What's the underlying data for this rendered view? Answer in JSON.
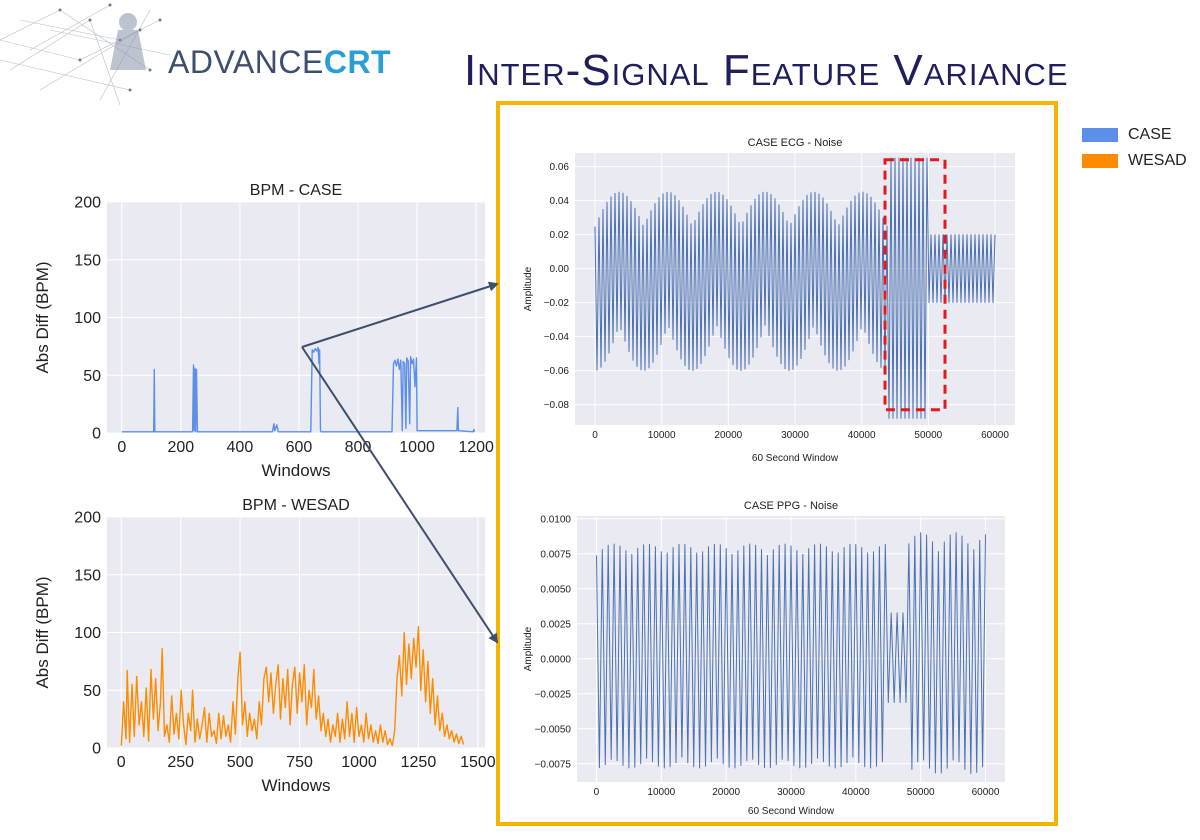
{
  "header": {
    "logo_text_1": "ADVANCE",
    "logo_text_2": "CRT",
    "title": "Inter-Signal Feature Variance"
  },
  "legend": {
    "items": [
      {
        "label": "CASE",
        "color": "#5b8fe8"
      },
      {
        "label": "WESAD",
        "color": "#ff8c00"
      }
    ]
  },
  "chart_data": [
    {
      "id": "bpm-case",
      "type": "line",
      "title": "BPM - CASE",
      "xlabel": "Windows",
      "ylabel": "Abs Diff (BPM)",
      "xlim": [
        -50,
        1230
      ],
      "ylim": [
        0,
        200
      ],
      "xticks": [
        0,
        200,
        400,
        600,
        800,
        1000,
        1200
      ],
      "yticks": [
        0,
        50,
        100,
        150,
        200
      ],
      "color": "#5b8fe8",
      "grid": true,
      "points": [
        [
          0,
          1
        ],
        [
          108,
          1
        ],
        [
          110,
          55
        ],
        [
          112,
          1
        ],
        [
          240,
          1
        ],
        [
          243,
          59
        ],
        [
          245,
          2
        ],
        [
          248,
          56
        ],
        [
          250,
          1
        ],
        [
          253,
          55
        ],
        [
          256,
          1
        ],
        [
          510,
          1
        ],
        [
          515,
          8
        ],
        [
          518,
          2
        ],
        [
          525,
          7
        ],
        [
          530,
          1
        ],
        [
          640,
          1
        ],
        [
          645,
          72
        ],
        [
          650,
          70
        ],
        [
          655,
          73
        ],
        [
          660,
          71
        ],
        [
          665,
          74
        ],
        [
          668,
          60
        ],
        [
          670,
          72
        ],
        [
          673,
          2
        ],
        [
          675,
          1
        ],
        [
          915,
          1
        ],
        [
          920,
          60
        ],
        [
          925,
          63
        ],
        [
          930,
          58
        ],
        [
          935,
          64
        ],
        [
          940,
          55
        ],
        [
          945,
          63
        ],
        [
          950,
          2
        ],
        [
          953,
          62
        ],
        [
          958,
          60
        ],
        [
          962,
          4
        ],
        [
          965,
          65
        ],
        [
          970,
          62
        ],
        [
          975,
          8
        ],
        [
          978,
          66
        ],
        [
          983,
          60
        ],
        [
          988,
          64
        ],
        [
          993,
          40
        ],
        [
          998,
          65
        ],
        [
          1000,
          2
        ],
        [
          1135,
          2
        ],
        [
          1138,
          22
        ],
        [
          1140,
          2
        ],
        [
          1190,
          1
        ],
        [
          1192,
          3
        ],
        [
          1195,
          1
        ]
      ]
    },
    {
      "id": "bpm-wesad",
      "type": "line",
      "title": "BPM - WESAD",
      "xlabel": "Windows",
      "ylabel": "Abs Diff (BPM)",
      "xlim": [
        -60,
        1530
      ],
      "ylim": [
        0,
        200
      ],
      "xticks": [
        0,
        250,
        500,
        750,
        1000,
        1250,
        1500
      ],
      "yticks": [
        0,
        50,
        100,
        150,
        200
      ],
      "color": "#ff8c00",
      "grid": true,
      "points": [
        [
          0,
          2
        ],
        [
          10,
          40
        ],
        [
          20,
          8
        ],
        [
          25,
          67
        ],
        [
          35,
          5
        ],
        [
          45,
          55
        ],
        [
          55,
          10
        ],
        [
          65,
          62
        ],
        [
          75,
          20
        ],
        [
          85,
          40
        ],
        [
          95,
          10
        ],
        [
          105,
          52
        ],
        [
          115,
          6
        ],
        [
          125,
          68
        ],
        [
          135,
          25
        ],
        [
          145,
          60
        ],
        [
          155,
          15
        ],
        [
          165,
          40
        ],
        [
          172,
          86
        ],
        [
          182,
          10
        ],
        [
          192,
          20
        ],
        [
          202,
          5
        ],
        [
          212,
          45
        ],
        [
          222,
          12
        ],
        [
          232,
          30
        ],
        [
          242,
          8
        ],
        [
          252,
          50
        ],
        [
          262,
          20
        ],
        [
          272,
          3
        ],
        [
          282,
          30
        ],
        [
          292,
          15
        ],
        [
          300,
          50
        ],
        [
          310,
          5
        ],
        [
          320,
          25
        ],
        [
          330,
          8
        ],
        [
          340,
          20
        ],
        [
          350,
          35
        ],
        [
          360,
          5
        ],
        [
          370,
          30
        ],
        [
          380,
          10
        ],
        [
          390,
          15
        ],
        [
          400,
          4
        ],
        [
          410,
          30
        ],
        [
          420,
          8
        ],
        [
          430,
          28
        ],
        [
          440,
          10
        ],
        [
          450,
          20
        ],
        [
          460,
          5
        ],
        [
          470,
          40
        ],
        [
          480,
          12
        ],
        [
          490,
          60
        ],
        [
          500,
          83
        ],
        [
          510,
          20
        ],
        [
          520,
          40
        ],
        [
          530,
          10
        ],
        [
          540,
          30
        ],
        [
          550,
          15
        ],
        [
          560,
          25
        ],
        [
          570,
          8
        ],
        [
          580,
          40
        ],
        [
          590,
          20
        ],
        [
          600,
          60
        ],
        [
          610,
          70
        ],
        [
          620,
          40
        ],
        [
          630,
          65
        ],
        [
          640,
          30
        ],
        [
          650,
          55
        ],
        [
          660,
          72
        ],
        [
          670,
          25
        ],
        [
          680,
          60
        ],
        [
          690,
          35
        ],
        [
          700,
          68
        ],
        [
          710,
          20
        ],
        [
          720,
          55
        ],
        [
          730,
          70
        ],
        [
          740,
          30
        ],
        [
          750,
          65
        ],
        [
          760,
          40
        ],
        [
          770,
          72
        ],
        [
          780,
          20
        ],
        [
          790,
          50
        ],
        [
          800,
          35
        ],
        [
          810,
          68
        ],
        [
          820,
          25
        ],
        [
          830,
          45
        ],
        [
          840,
          15
        ],
        [
          850,
          30
        ],
        [
          860,
          10
        ],
        [
          870,
          25
        ],
        [
          880,
          5
        ],
        [
          890,
          20
        ],
        [
          900,
          10
        ],
        [
          910,
          30
        ],
        [
          920,
          5
        ],
        [
          930,
          25
        ],
        [
          940,
          8
        ],
        [
          950,
          40
        ],
        [
          960,
          10
        ],
        [
          970,
          30
        ],
        [
          980,
          5
        ],
        [
          990,
          35
        ],
        [
          1000,
          10
        ],
        [
          1010,
          20
        ],
        [
          1020,
          5
        ],
        [
          1030,
          30
        ],
        [
          1040,
          8
        ],
        [
          1050,
          20
        ],
        [
          1060,
          5
        ],
        [
          1070,
          15
        ],
        [
          1080,
          4
        ],
        [
          1090,
          20
        ],
        [
          1100,
          5
        ],
        [
          1110,
          15
        ],
        [
          1120,
          3
        ],
        [
          1130,
          8
        ],
        [
          1140,
          2
        ],
        [
          1150,
          15
        ],
        [
          1160,
          60
        ],
        [
          1170,
          80
        ],
        [
          1180,
          45
        ],
        [
          1190,
          100
        ],
        [
          1200,
          55
        ],
        [
          1210,
          90
        ],
        [
          1220,
          60
        ],
        [
          1230,
          95
        ],
        [
          1240,
          70
        ],
        [
          1250,
          105
        ],
        [
          1260,
          50
        ],
        [
          1270,
          85
        ],
        [
          1280,
          40
        ],
        [
          1290,
          75
        ],
        [
          1300,
          30
        ],
        [
          1310,
          60
        ],
        [
          1320,
          20
        ],
        [
          1330,
          45
        ],
        [
          1340,
          15
        ],
        [
          1350,
          30
        ],
        [
          1360,
          10
        ],
        [
          1370,
          20
        ],
        [
          1380,
          8
        ],
        [
          1390,
          15
        ],
        [
          1400,
          5
        ],
        [
          1410,
          12
        ],
        [
          1420,
          4
        ],
        [
          1430,
          10
        ],
        [
          1440,
          3
        ]
      ]
    },
    {
      "id": "case-ecg-noise",
      "type": "line",
      "title": "CASE ECG - Noise",
      "xlabel": "60 Second Window",
      "ylabel": "Amplitude",
      "xlim": [
        -3000,
        63000
      ],
      "ylim": [
        -0.092,
        0.068
      ],
      "xticks": [
        0,
        10000,
        20000,
        30000,
        40000,
        50000,
        60000
      ],
      "xtick_labels": [
        "0",
        "10000",
        "20000",
        "30000",
        "40000",
        "50000",
        "60000"
      ],
      "yticks": [
        0.06,
        0.04,
        0.02,
        0.0,
        -0.02,
        -0.04,
        -0.06,
        -0.08
      ],
      "ytick_labels": [
        "0.06",
        "0.04",
        "0.02",
        "0.00",
        "−0.02",
        "−0.04",
        "−0.06",
        "−0.08"
      ],
      "color": "#4c72b0",
      "grid": true,
      "signal": {
        "start": 0,
        "end": 60000,
        "cycles": 100,
        "max_pos": 0.045,
        "max_neg": -0.06,
        "burst_range": [
          44000,
          50000
        ],
        "burst_peak": 0.065,
        "burst_trough": -0.088,
        "tail_pos": 0.02,
        "tail_neg": -0.02
      },
      "annotation": {
        "type": "dashed-rect",
        "color": "#e31a1c",
        "x": [
          43500,
          52500
        ],
        "y": [
          -0.083,
          0.064
        ]
      }
    },
    {
      "id": "case-ppg-noise",
      "type": "line",
      "title": "CASE PPG - Noise",
      "xlabel": "60 Second Window",
      "ylabel": "Amplitude",
      "xlim": [
        -3000,
        63000
      ],
      "ylim": [
        -0.0088,
        0.0102
      ],
      "xticks": [
        0,
        10000,
        20000,
        30000,
        40000,
        50000,
        60000
      ],
      "xtick_labels": [
        "0",
        "10000",
        "20000",
        "30000",
        "40000",
        "50000",
        "60000"
      ],
      "yticks": [
        0.01,
        0.0075,
        0.005,
        0.0025,
        0.0,
        -0.0025,
        -0.005,
        -0.0075
      ],
      "ytick_labels": [
        "0.0100",
        "0.0075",
        "0.0050",
        "0.0025",
        "0.0000",
        "−0.0025",
        "−0.0050",
        "−0.0075"
      ],
      "color": "#4c72b0",
      "grid": true,
      "signal": {
        "start": 0,
        "end": 60000,
        "cycles": 66,
        "max_pos": 0.0082,
        "max_neg": -0.0078,
        "dip_range": [
          45000,
          48000
        ],
        "dip_scale": 0.4,
        "late_pos": 0.009,
        "late_neg": -0.0082
      }
    }
  ]
}
